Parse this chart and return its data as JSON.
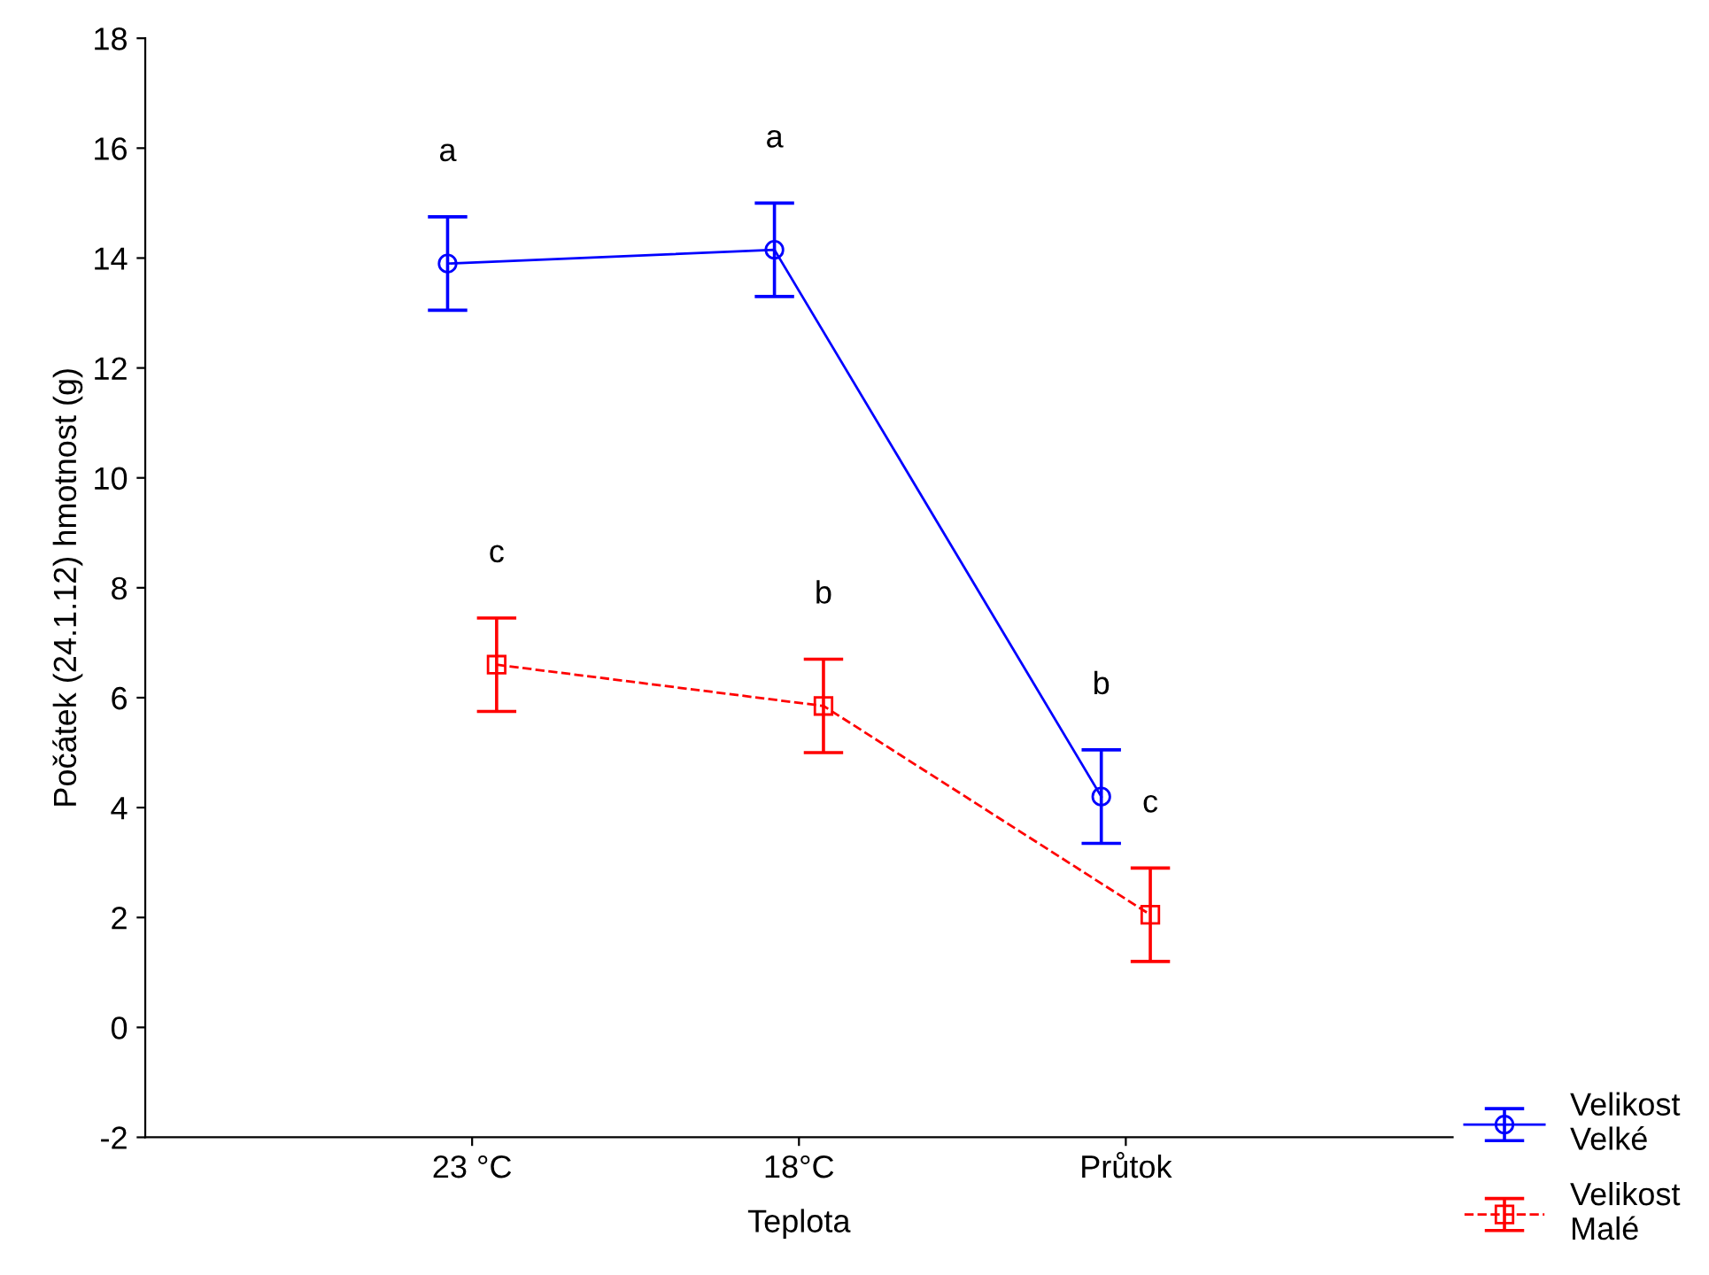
{
  "chart_data": {
    "type": "line",
    "xlabel": "Teplota",
    "ylabel": "Počátek (24.1.12) hmotnost (g)",
    "categories": [
      "23 °C",
      "18°C",
      "Průtok"
    ],
    "series": [
      {
        "name": "Velikost\nVelké",
        "color": "#0000ff",
        "marker": "circle",
        "line_style": "solid",
        "values": [
          13.9,
          14.15,
          4.2
        ],
        "errors": [
          0.85,
          0.85,
          0.85
        ]
      },
      {
        "name": "Velikost\nMalé",
        "color": "#ff0000",
        "marker": "square",
        "line_style": "dashed",
        "values": [
          6.6,
          5.85,
          2.05
        ],
        "errors": [
          0.85,
          0.85,
          0.85
        ]
      }
    ],
    "ylim": [
      -2,
      18
    ],
    "yticks": [
      -2,
      0,
      2,
      4,
      6,
      8,
      10,
      12,
      14,
      16,
      18
    ],
    "grid": false,
    "legend": "bottom right",
    "annotations": [
      "a",
      "a",
      "b",
      "c",
      "b",
      "c"
    ]
  }
}
